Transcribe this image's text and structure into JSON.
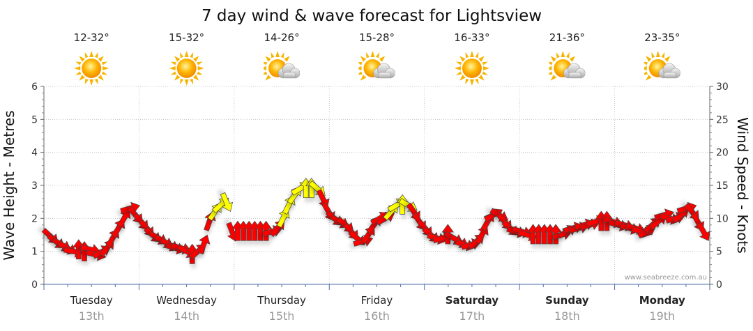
{
  "chart_data": {
    "type": "line",
    "title": "7 day wind & wave forecast for Lightsview",
    "ylabel_left": "Wave Height - Metres",
    "ylabel_right": "Wind Speed - Knots",
    "ylim_left": [
      0,
      6
    ],
    "ylim_right": [
      0,
      30
    ],
    "left_ticks": [
      "0",
      "1",
      "2",
      "3",
      "4",
      "5",
      "6"
    ],
    "right_ticks": [
      "0",
      "5",
      "10",
      "15",
      "20",
      "25",
      "30"
    ],
    "grid": true,
    "days": [
      {
        "name": "Tuesday",
        "date": "13th",
        "temp": "12-32°",
        "weather": "sunny",
        "bold": false
      },
      {
        "name": "Wednesday",
        "date": "14th",
        "temp": "15-32°",
        "weather": "sunny",
        "bold": false
      },
      {
        "name": "Thursday",
        "date": "15th",
        "temp": "14-26°",
        "weather": "partly-cloudy",
        "bold": false
      },
      {
        "name": "Friday",
        "date": "16th",
        "temp": "15-28°",
        "weather": "partly-cloudy",
        "bold": false
      },
      {
        "name": "Saturday",
        "date": "17th",
        "temp": "16-33°",
        "weather": "sunny",
        "bold": true
      },
      {
        "name": "Sunday",
        "date": "18th",
        "temp": "21-36°",
        "weather": "partly-cloudy",
        "bold": true
      },
      {
        "name": "Monday",
        "date": "19th",
        "temp": "23-35°",
        "weather": "partly-cloudy",
        "bold": true
      }
    ],
    "series": [
      {
        "metric": "wind speed (knots)",
        "colors": {
          "strong": "#ff0000",
          "moderate": "#ffff00"
        },
        "values": [
          7.3,
          6.5,
          6.0,
          5.5,
          5.0,
          5.2,
          4.9,
          5.3,
          4.5,
          4.9,
          5.5,
          7.0,
          8.5,
          10.0,
          11.5,
          10.5,
          9.5,
          8.5,
          7.5,
          7.0,
          6.5,
          6.0,
          5.5,
          5.5,
          5.0,
          4.5,
          5.0,
          6.0,
          9.5,
          11.0,
          12.0,
          12.5,
          8.0,
          8.0,
          8.0,
          8.0,
          8.0,
          8.0,
          8.0,
          8.0,
          8.5,
          10.0,
          12.0,
          13.5,
          14.5,
          14.5,
          14.5,
          14.5,
          13.0,
          11.0,
          10.0,
          9.5,
          9.0,
          8.0,
          7.0,
          6.5,
          7.5,
          9.0,
          10.0,
          10.0,
          11.0,
          12.0,
          12.0,
          12.0,
          11.0,
          9.5,
          8.5,
          7.5,
          7.0,
          7.0,
          7.5,
          7.0,
          6.5,
          6.0,
          6.0,
          6.5,
          7.5,
          9.5,
          10.5,
          10.5,
          9.5,
          8.5,
          8.0,
          8.0,
          7.5,
          7.5,
          7.5,
          7.5,
          7.5,
          7.5,
          7.5,
          8.0,
          8.5,
          8.5,
          9.0,
          9.0,
          9.5,
          9.5,
          9.5,
          9.5,
          9.0,
          9.0,
          8.5,
          8.5,
          8.0,
          8.0,
          9.0,
          9.5,
          10.5,
          10.0,
          10.0,
          10.5,
          11.5,
          11.0,
          9.5,
          8.0
        ],
        "moderate_indices": [
          29,
          30,
          31,
          41,
          42,
          43,
          44,
          45,
          46,
          47,
          60,
          61,
          62,
          63
        ]
      }
    ],
    "credit": "www.seabreeze.com.au"
  }
}
